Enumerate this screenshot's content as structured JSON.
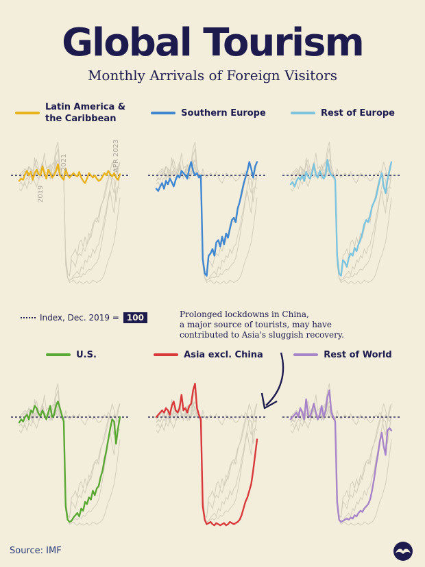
{
  "header": {
    "title": "Global Tourism",
    "subtitle": "Monthly Arrivals of Foreign Visitors"
  },
  "legend_note": {
    "text": "Index, Dec. 2019 =",
    "value": "100"
  },
  "annotation": {
    "lines": [
      "Prolonged lockdowns in China,",
      "a major source of tourists, may have",
      "contributed to Asia's sluggish recovery."
    ]
  },
  "source": "Source: IMF",
  "date_labels": [
    "2019",
    "2021",
    "APR 2023"
  ],
  "chart_data": {
    "type": "line",
    "title": "Global Tourism",
    "subtitle": "Monthly Arrivals of Foreign Visitors",
    "reference_value": 100,
    "ylim": [
      0,
      135
    ],
    "x_start": "2019-01",
    "x_end": "2023-04",
    "series": [
      {
        "name": "Latin America & the Caribbean",
        "color": "#e8b21c",
        "values": [
          95,
          97,
          96,
          101,
          104,
          100,
          103,
          96,
          102,
          105,
          101,
          100,
          108,
          102,
          97,
          105,
          102,
          98,
          100,
          104,
          110,
          100,
          98,
          96,
          106,
          100,
          98,
          100,
          102,
          100,
          99,
          103,
          98,
          95,
          93,
          97,
          102,
          100,
          98,
          100,
          97,
          95,
          96,
          99,
          102,
          100,
          104,
          101,
          99,
          102,
          98,
          96,
          101
        ]
      },
      {
        "name": "Southern Europe",
        "color": "#3f86d1",
        "values": [
          88,
          86,
          90,
          93,
          88,
          95,
          92,
          97,
          94,
          90,
          96,
          100,
          98,
          104,
          102,
          100,
          97,
          106,
          112,
          104,
          100,
          102,
          98,
          100,
          25,
          12,
          10,
          28,
          30,
          34,
          28,
          40,
          42,
          36,
          45,
          38,
          48,
          44,
          52,
          60,
          62,
          58,
          70,
          76,
          84,
          92,
          98,
          104,
          112,
          106,
          98,
          108,
          112
        ]
      },
      {
        "name": "Rest of Europe",
        "color": "#7cc3de",
        "values": [
          92,
          94,
          90,
          95,
          98,
          96,
          100,
          95,
          103,
          99,
          97,
          102,
          110,
          100,
          98,
          104,
          100,
          97,
          100,
          114,
          104,
          100,
          99,
          96,
          28,
          12,
          10,
          24,
          22,
          18,
          26,
          30,
          28,
          35,
          32,
          38,
          42,
          48,
          56,
          60,
          58,
          64,
          72,
          76,
          80,
          88,
          96,
          102,
          90,
          84,
          96,
          104,
          112
        ]
      },
      {
        "name": "U.S.",
        "color": "#5aa834",
        "values": [
          95,
          98,
          96,
          100,
          102,
          98,
          106,
          104,
          110,
          108,
          103,
          101,
          106,
          102,
          98,
          104,
          110,
          100,
          102,
          110,
          114,
          108,
          102,
          96,
          20,
          8,
          6,
          7,
          10,
          12,
          14,
          11,
          18,
          16,
          24,
          22,
          28,
          26,
          34,
          30,
          36,
          38,
          46,
          52,
          62,
          70,
          80,
          90,
          98,
          96,
          76,
          90,
          100
        ]
      },
      {
        "name": "Asia excl. China",
        "color": "#d8383a",
        "values": [
          100,
          102,
          104,
          106,
          104,
          108,
          106,
          102,
          110,
          114,
          106,
          104,
          108,
          120,
          106,
          108,
          104,
          110,
          112,
          124,
          130,
          108,
          102,
          98,
          20,
          8,
          4,
          5,
          6,
          4,
          3,
          5,
          4,
          3,
          4,
          5,
          3,
          4,
          6,
          5,
          4,
          5,
          6,
          8,
          12,
          18,
          24,
          28,
          34,
          40,
          52,
          66,
          80
        ]
      },
      {
        "name": "Rest of World",
        "color": "#a784c8",
        "values": [
          98,
          100,
          102,
          104,
          100,
          108,
          104,
          98,
          116,
          102,
          100,
          106,
          112,
          104,
          98,
          102,
          110,
          100,
          106,
          118,
          124,
          104,
          100,
          96,
          24,
          8,
          6,
          7,
          8,
          9,
          8,
          10,
          9,
          12,
          11,
          14,
          16,
          15,
          18,
          20,
          22,
          26,
          34,
          44,
          56,
          66,
          78,
          86,
          74,
          66,
          88,
          90,
          88
        ]
      }
    ]
  }
}
